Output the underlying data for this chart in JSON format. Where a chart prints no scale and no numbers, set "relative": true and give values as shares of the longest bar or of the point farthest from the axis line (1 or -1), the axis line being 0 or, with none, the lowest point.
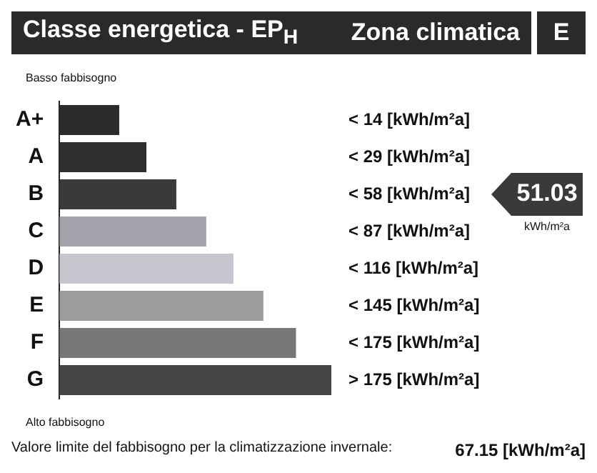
{
  "chart_data": {
    "type": "bar",
    "orientation": "horizontal",
    "relative": true,
    "title": "Classe energetica - EP$_{H}$",
    "categories": [
      "A+",
      "A",
      "B",
      "C",
      "D",
      "E",
      "F",
      "G"
    ],
    "values": [
      0.22,
      0.32,
      0.43,
      0.54,
      0.64,
      0.75,
      0.87,
      1
    ],
    "colors": [
      "#2b2b2b",
      "#303030",
      "#3a3a3a",
      "#a2a2aa",
      "#c6c6ce",
      "#9c9c9c",
      "#777777",
      "#454545"
    ],
    "annotations": [
      "Zona climatica",
      "E",
      "Basso fabbisogno",
      "Alto fabbisogno",
      "Valore limite del fabbisogno per la climatizzazione invernale:",
      "67.15 [kWh/m²a]",
      "51.03",
      "kWh/m²a",
      "< 14 [kWh/m²a]",
      "< 29 [kWh/m²a]",
      "< 58 [kWh/m²a]",
      "< 87 [kWh/m²a]",
      "< 116 [kWh/m²a]",
      "< 145 [kWh/m²a]",
      "< 175 [kWh/m²a]",
      "> 175 [kWh/m²a]"
    ],
    "legend": false
  }
}
